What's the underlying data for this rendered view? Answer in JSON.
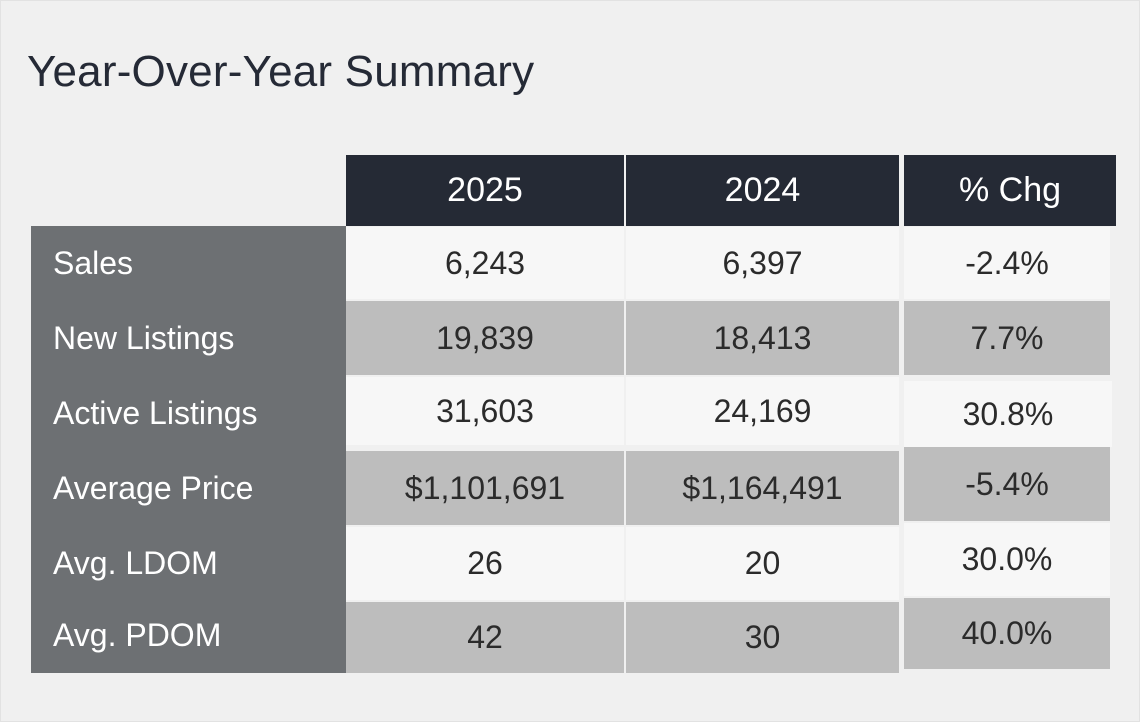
{
  "title": "Year-Over-Year Summary",
  "columns": [
    "2025",
    "2024",
    "% Chg"
  ],
  "rows": [
    {
      "label": "Sales",
      "y2025": "6,243",
      "y2024": "6,397",
      "chg": "-2.4%"
    },
    {
      "label": "New Listings",
      "y2025": "19,839",
      "y2024": "18,413",
      "chg": "7.7%"
    },
    {
      "label": "Active Listings",
      "y2025": "31,603",
      "y2024": "24,169",
      "chg": "30.8%"
    },
    {
      "label": "Average Price",
      "y2025": "$1,101,691",
      "y2024": "$1,164,491",
      "chg": "-5.4%"
    },
    {
      "label": "Avg. LDOM",
      "y2025": "26",
      "y2024": "20",
      "chg": "30.0%"
    },
    {
      "label": "Avg. PDOM",
      "y2025": "42",
      "y2024": "30",
      "chg": "40.0%"
    }
  ],
  "colors": {
    "header_bg": "#252a35",
    "label_bg": "#6d7073",
    "row_light": "#f7f7f7",
    "row_gray": "#bdbdbd"
  }
}
